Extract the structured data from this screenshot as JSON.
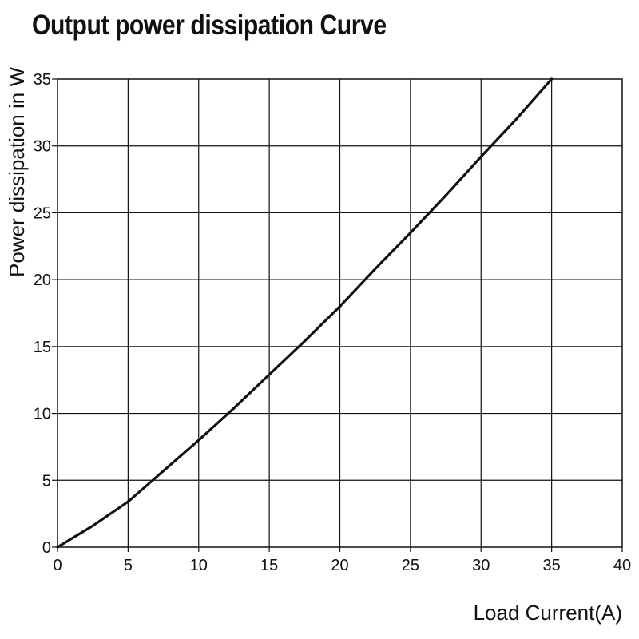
{
  "chart_data": {
    "type": "line",
    "title": "Output power dissipation Curve",
    "xlabel": "Load Current(A)",
    "ylabel": "Power dissipation in W",
    "xlim": [
      0,
      40
    ],
    "ylim": [
      0,
      35
    ],
    "x_ticks": [
      "0",
      "5",
      "10",
      "15",
      "20",
      "25",
      "30",
      "35",
      "40"
    ],
    "y_ticks": [
      "0",
      "5",
      "10",
      "15",
      "20",
      "25",
      "30",
      "35"
    ],
    "grid": true,
    "series": [
      {
        "color": "#111111",
        "x": [
          0,
          2.5,
          5,
          7.5,
          10,
          12.5,
          15,
          17.5,
          20,
          22.5,
          25,
          27.5,
          30,
          32.5,
          35
        ],
        "y": [
          0,
          1.6,
          3.4,
          5.7,
          8.0,
          10.4,
          12.9,
          15.4,
          18.0,
          20.8,
          23.5,
          26.3,
          29.2,
          32.0,
          35.0
        ]
      }
    ]
  }
}
